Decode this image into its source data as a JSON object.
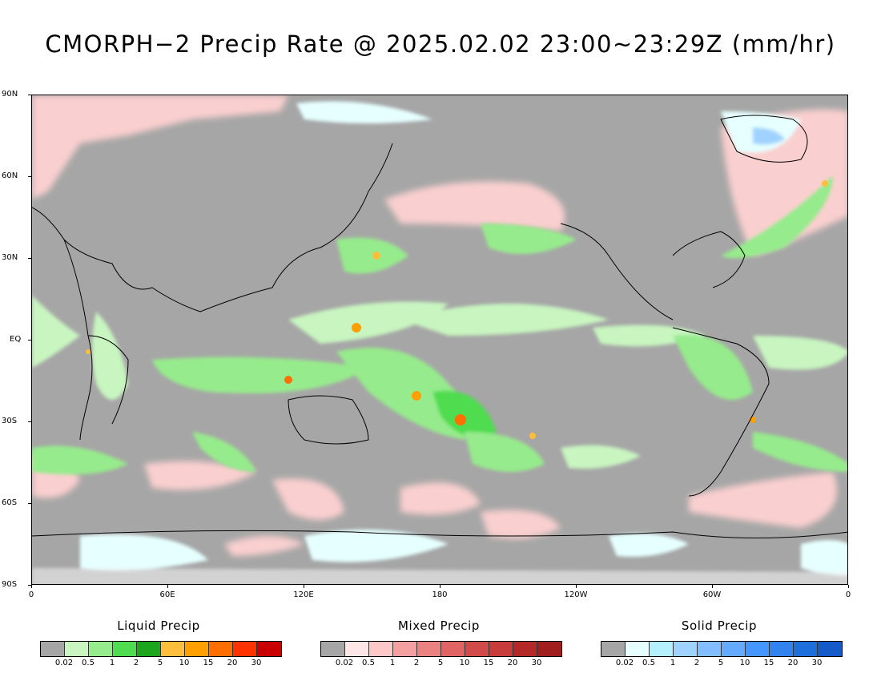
{
  "title": "CMORPH−2 Precip Rate @ 2025.02.02 23:00~23:29Z (mm/hr)",
  "map": {
    "lat_labels": [
      "90N",
      "60N",
      "30N",
      "EQ",
      "30S",
      "60S",
      "90S"
    ],
    "lon_labels": [
      "0",
      "60E",
      "120E",
      "180",
      "120W",
      "60W",
      "0"
    ],
    "background_color": "#a6a6a6"
  },
  "legends": [
    {
      "title": "Liquid Precip",
      "colors": [
        "#a6a6a6",
        "#c8f5c0",
        "#96eb8c",
        "#50dc50",
        "#1ea51e",
        "#ffbe3c",
        "#ffa000",
        "#ff6e00",
        "#ff3200",
        "#c80000"
      ],
      "ticks": [
        "0.02",
        "0.5",
        "1",
        "2",
        "5",
        "10",
        "15",
        "20",
        "30"
      ]
    },
    {
      "title": "Mixed Precip",
      "colors": [
        "#a6a6a6",
        "#ffe6e6",
        "#ffc8c8",
        "#f5a0a0",
        "#eb8282",
        "#e16464",
        "#d24b4b",
        "#c83c3c",
        "#b42828",
        "#a01e1e"
      ],
      "ticks": [
        "0.02",
        "0.5",
        "1",
        "2",
        "5",
        "10",
        "15",
        "20",
        "30"
      ]
    },
    {
      "title": "Solid Precip",
      "colors": [
        "#a6a6a6",
        "#e6ffff",
        "#b4f0ff",
        "#a0d2ff",
        "#82beff",
        "#64aaff",
        "#4696ff",
        "#3282f0",
        "#1e6edc",
        "#145ac8"
      ],
      "ticks": [
        "0.02",
        "0.5",
        "1",
        "2",
        "5",
        "10",
        "15",
        "20",
        "30"
      ]
    }
  ]
}
